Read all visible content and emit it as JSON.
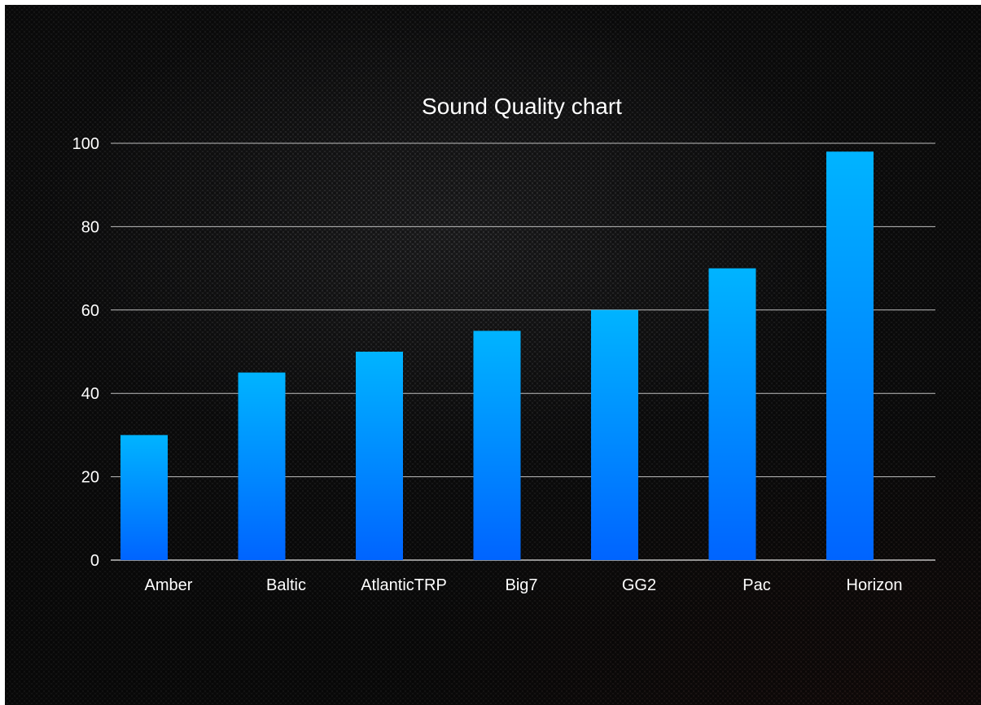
{
  "chart_data": {
    "type": "bar",
    "title": "Sound Quality chart",
    "xlabel": "",
    "ylabel": "",
    "categories": [
      "Amber",
      "Baltic",
      "AtlanticTRP",
      "Big7",
      "GG2",
      "Pac",
      "Horizon"
    ],
    "values": [
      30,
      45,
      50,
      55,
      60,
      70,
      98
    ],
    "ylim": [
      0,
      100
    ],
    "yticks": [
      0,
      20,
      40,
      60,
      80,
      100
    ],
    "grid": true,
    "legend": "none",
    "colors": {
      "bar_top": "#00b4ff",
      "bar_bottom": "#0064ff",
      "gridline": "#bfbfbf",
      "text": "#ffffff"
    }
  }
}
